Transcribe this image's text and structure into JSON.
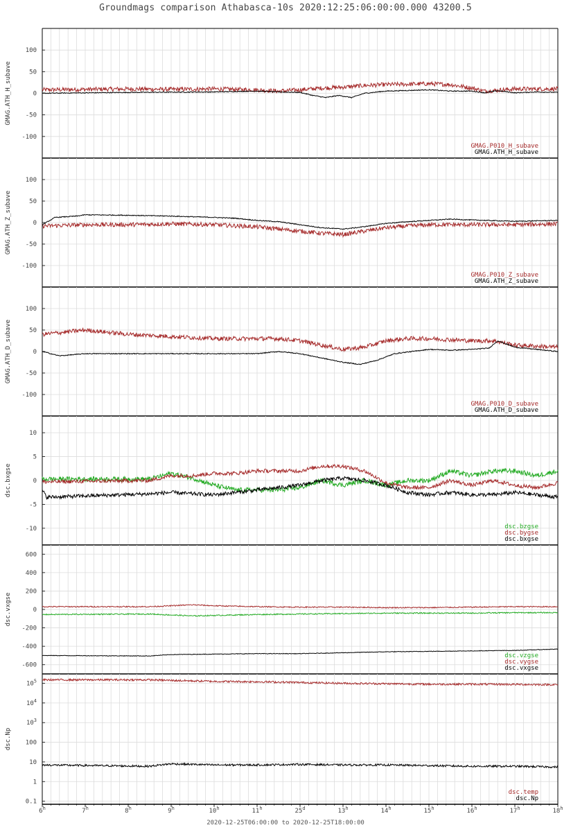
{
  "title": "Groundmags comparison Athabasca-10s 2020:12:25:06:00:00.000 43200.5",
  "x_range_label": "2020-12-25T06:00:00 to 2020-12-25T18:00:00",
  "chart_data": {
    "type": "line",
    "x_unit": "hour UT",
    "x_domain": [
      6,
      18
    ],
    "x_ticks": [
      {
        "x": 6,
        "label": "6",
        "sup": "h"
      },
      {
        "x": 7,
        "label": "7",
        "sup": "h"
      },
      {
        "x": 8,
        "label": "8",
        "sup": "h"
      },
      {
        "x": 9,
        "label": "9",
        "sup": "h"
      },
      {
        "x": 10,
        "label": "10",
        "sup": "h"
      },
      {
        "x": 11,
        "label": "11",
        "sup": "h"
      },
      {
        "x": 12,
        "label": "25",
        "sup": "d"
      },
      {
        "x": 13,
        "label": "13",
        "sup": "h"
      },
      {
        "x": 14,
        "label": "14",
        "sup": "h"
      },
      {
        "x": 15,
        "label": "15",
        "sup": "h"
      },
      {
        "x": 16,
        "label": "16",
        "sup": "h"
      },
      {
        "x": 17,
        "label": "17",
        "sup": "h"
      },
      {
        "x": 18,
        "label": "18",
        "sup": "h"
      }
    ],
    "panels": [
      {
        "ylabel": "GMAG.ATH_H_subave",
        "ylim": [
          -150,
          150
        ],
        "scale": "linear",
        "yticks": [
          100,
          50,
          0,
          -50,
          -100
        ],
        "ytick_labels": [
          "100",
          "50",
          "0",
          "-50",
          "-100"
        ],
        "series": [
          {
            "name": "GMAG.P010_H_subave",
            "color": "#a52a2a",
            "noise": 5,
            "x": [
              6,
              8,
              9,
              10,
              11,
              11.5,
              12,
              12.5,
              13,
              13.5,
              14,
              15,
              15.5,
              16,
              16.3,
              17,
              18
            ],
            "y": [
              8,
              10,
              9,
              10,
              8,
              5,
              8,
              12,
              14,
              18,
              20,
              22,
              20,
              12,
              5,
              10,
              10
            ]
          },
          {
            "name": "GMAG.ATH_H_subave",
            "color": "#000000",
            "noise": 1,
            "x": [
              6,
              8,
              10,
              11,
              11.5,
              12,
              12.3,
              12.6,
              12.9,
              13.2,
              13.5,
              14,
              15,
              15.5,
              16,
              16.3,
              16.6,
              17,
              17.5,
              18
            ],
            "y": [
              0,
              2,
              3,
              5,
              3,
              2,
              -5,
              -10,
              -5,
              -10,
              0,
              5,
              8,
              5,
              5,
              1,
              6,
              1,
              3,
              2
            ]
          }
        ]
      },
      {
        "ylabel": "GMAG.ATH_Z_subave",
        "ylim": [
          -150,
          150
        ],
        "scale": "linear",
        "yticks": [
          100,
          50,
          0,
          -50,
          -100
        ],
        "ytick_labels": [
          "100",
          "50",
          "0",
          "-50",
          "-100"
        ],
        "series": [
          {
            "name": "GMAG.P010_Z_subave",
            "color": "#a52a2a",
            "noise": 5,
            "x": [
              6,
              7,
              8,
              9,
              10,
              11,
              11.5,
              12,
              12.5,
              13,
              13.5,
              14,
              14.5,
              15,
              16,
              17,
              18
            ],
            "y": [
              -8,
              -5,
              -5,
              -3,
              -5,
              -10,
              -15,
              -20,
              -25,
              -28,
              -20,
              -12,
              -8,
              -5,
              -5,
              -5,
              -3
            ]
          },
          {
            "name": "GMAG.ATH_Z_subave",
            "color": "#000000",
            "noise": 1,
            "x": [
              6,
              6.3,
              6.8,
              7,
              8,
              9,
              10,
              10.5,
              11,
              11.5,
              12,
              12.5,
              13,
              13.3,
              13.6,
              14,
              14.5,
              15,
              15.5,
              16,
              17,
              18
            ],
            "y": [
              -5,
              12,
              15,
              18,
              17,
              15,
              12,
              10,
              5,
              2,
              -5,
              -12,
              -15,
              -12,
              -8,
              -2,
              2,
              5,
              8,
              6,
              3,
              5
            ]
          }
        ]
      },
      {
        "ylabel": "GMAG.ATH_D_subave",
        "ylim": [
          -150,
          150
        ],
        "scale": "linear",
        "yticks": [
          100,
          50,
          0,
          -50,
          -100
        ],
        "ytick_labels": [
          "100",
          "50",
          "0",
          "-50",
          "-100"
        ],
        "series": [
          {
            "name": "GMAG.P010_D_subave",
            "color": "#a52a2a",
            "noise": 5,
            "x": [
              6,
              7,
              8,
              9,
              10,
              11,
              11.5,
              12,
              12.5,
              13,
              13.5,
              14,
              14.5,
              15,
              16,
              16.5,
              17,
              18
            ],
            "y": [
              40,
              50,
              40,
              35,
              30,
              30,
              30,
              25,
              15,
              5,
              10,
              25,
              30,
              30,
              25,
              25,
              15,
              10
            ]
          },
          {
            "name": "GMAG.ATH_D_subave",
            "color": "#000000",
            "noise": 1,
            "x": [
              6,
              6.4,
              7,
              8,
              9,
              10,
              11,
              11.5,
              12,
              12.5,
              13,
              13.4,
              13.8,
              14.2,
              15,
              15.5,
              16,
              16.4,
              16.6,
              17,
              17.5,
              18
            ],
            "y": [
              0,
              -10,
              -5,
              -5,
              -5,
              -5,
              -5,
              0,
              -5,
              -15,
              -25,
              -30,
              -20,
              -5,
              5,
              3,
              5,
              8,
              25,
              10,
              5,
              0
            ]
          }
        ]
      },
      {
        "ylabel": "dsc.bxgse",
        "ylim": [
          -13.5,
          13.5
        ],
        "scale": "linear",
        "yticks": [
          10,
          5,
          0,
          -5,
          -10
        ],
        "ytick_labels": [
          "10",
          "5",
          "0",
          "-5",
          "-10"
        ],
        "series": [
          {
            "name": "dsc.bzgse",
            "color": "#22aa22",
            "noise": 0.5,
            "x": [
              6,
              8.5,
              9,
              9.5,
              10,
              10.5,
              11,
              11.5,
              12,
              12.5,
              13,
              13.5,
              14,
              14.5,
              15,
              15.5,
              16,
              16.5,
              17,
              17.5,
              18
            ],
            "y": [
              0.3,
              0.3,
              1.5,
              0.5,
              -1,
              -2,
              -2,
              -2,
              -1.5,
              0,
              -1,
              0,
              -1,
              0,
              0,
              2,
              1,
              2,
              2,
              1,
              2
            ]
          },
          {
            "name": "dsc.bygse",
            "color": "#a52a2a",
            "noise": 0.4,
            "x": [
              6,
              8.5,
              9,
              9.5,
              10,
              10.5,
              11,
              11.5,
              12,
              12.5,
              13,
              13.5,
              14,
              14.5,
              15,
              15.5,
              16,
              16.5,
              17,
              17.5,
              18
            ],
            "y": [
              -0.3,
              0,
              1,
              1,
              1.5,
              1.5,
              2,
              2,
              2,
              3,
              3,
              2,
              -0.5,
              -1.5,
              -1.5,
              0,
              -1,
              0,
              -1,
              -1.5,
              -0.5
            ]
          },
          {
            "name": "dsc.bxgse",
            "color": "#000000",
            "noise": 0.4,
            "x": [
              6,
              6.1,
              8.5,
              9,
              9.5,
              10,
              10.5,
              11,
              11.5,
              12,
              12.5,
              13,
              13.5,
              14,
              14.5,
              15,
              15.5,
              16,
              16.5,
              17,
              17.5,
              18
            ],
            "y": [
              -2,
              -3.5,
              -2.8,
              -2.5,
              -2.8,
              -3,
              -2.5,
              -2,
              -1.5,
              -1,
              0,
              0.5,
              0,
              -1,
              -2.5,
              -3,
              -2.5,
              -3,
              -3,
              -2.5,
              -3,
              -3.5
            ]
          }
        ]
      },
      {
        "ylabel": "dsc.vxgse",
        "ylim": [
          -700,
          700
        ],
        "scale": "linear",
        "yticks": [
          600,
          400,
          200,
          0,
          -200,
          -400,
          -600
        ],
        "ytick_labels": [
          "600",
          "400",
          "200",
          "0",
          "-200",
          "-400",
          "-600"
        ],
        "series": [
          {
            "name": "dsc.vzgse",
            "color": "#22aa22",
            "noise": 6,
            "x": [
              6,
              8.5,
              9,
              9.5,
              10,
              11,
              12,
              13,
              14,
              15,
              16,
              17,
              18
            ],
            "y": [
              -55,
              -50,
              -60,
              -70,
              -65,
              -55,
              -50,
              -45,
              -40,
              -40,
              -40,
              -35,
              -35
            ]
          },
          {
            "name": "dsc.vygse",
            "color": "#a52a2a",
            "noise": 6,
            "x": [
              6,
              8.5,
              9,
              9.5,
              10,
              11,
              12,
              13,
              14,
              15,
              16,
              17,
              18
            ],
            "y": [
              30,
              30,
              40,
              50,
              40,
              30,
              25,
              25,
              20,
              20,
              25,
              30,
              30
            ]
          },
          {
            "name": "dsc.vxgse",
            "color": "#000000",
            "noise": 3,
            "x": [
              6,
              8.5,
              9,
              10,
              11,
              12,
              13,
              14,
              15,
              16,
              17,
              18
            ],
            "y": [
              -500,
              -505,
              -490,
              -485,
              -480,
              -480,
              -470,
              -460,
              -455,
              -450,
              -445,
              -430
            ]
          }
        ]
      },
      {
        "ylabel": "dsc.Np",
        "ylim": [
          0.07,
          300000
        ],
        "scale": "log",
        "yticks": [
          100000,
          10000,
          1000,
          100,
          10,
          1,
          0.1
        ],
        "ytick_labels": [
          "10^5",
          "10^4",
          "10^3",
          "100",
          "10",
          "1",
          "0.1"
        ],
        "series": [
          {
            "name": "dsc.temp",
            "color": "#a52a2a",
            "noise": 0.05,
            "x": [
              6,
              8.5,
              9,
              10,
              11,
              12,
              13,
              14,
              15,
              16,
              17,
              18
            ],
            "y": [
              150000,
              150000,
              140000,
              125000,
              120000,
              110000,
              100000,
              95000,
              90000,
              90000,
              88000,
              85000
            ]
          },
          {
            "name": "dsc.Np",
            "color": "#000000",
            "noise": 0.05,
            "x": [
              6,
              8.5,
              9,
              10,
              11,
              12,
              13,
              14,
              15,
              16,
              17,
              18
            ],
            "y": [
              7,
              6,
              8,
              7,
              7,
              7.5,
              7,
              7,
              6.5,
              6,
              6,
              5.5
            ]
          }
        ]
      }
    ]
  }
}
